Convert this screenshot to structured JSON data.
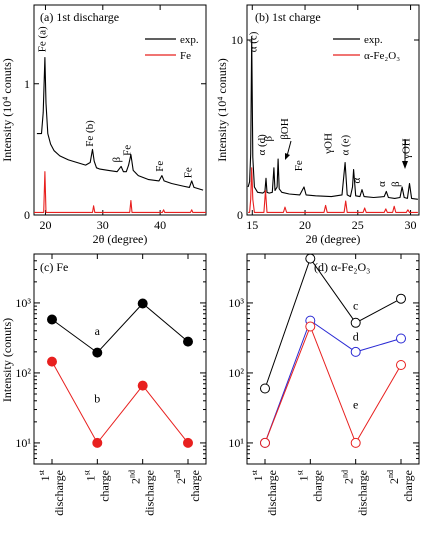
{
  "chart_data": [
    {
      "panel": "a",
      "type": "line",
      "title": "(a) 1st discharge",
      "xlabel": "2θ (degree)",
      "ylabel": "Intensity (10⁴ conuts)",
      "xlim": [
        18,
        48
      ],
      "ylim": [
        0,
        1.6
      ],
      "xticks": [
        20,
        30,
        40
      ],
      "yticks": [
        0,
        1
      ],
      "legend": {
        "position": "top-right",
        "entries": [
          {
            "name": "exp.",
            "color": "#000000"
          },
          {
            "name": "Fe",
            "color": "#e8201f"
          }
        ]
      },
      "annotations": [
        {
          "text": "Fe (a)",
          "x": 20,
          "y": 1.24
        },
        {
          "text": "Fe (b)",
          "x": 28.3,
          "y": 0.52
        },
        {
          "text": "β",
          "x": 33,
          "y": 0.4
        },
        {
          "text": "Fe",
          "x": 34.8,
          "y": 0.45
        },
        {
          "text": "Fe",
          "x": 40.5,
          "y": 0.33
        },
        {
          "text": "Fe",
          "x": 45.5,
          "y": 0.28
        }
      ],
      "series": [
        {
          "name": "exp.",
          "color": "#000000",
          "x": [
            18.5,
            19.3,
            19.6,
            19.9,
            20.1,
            20.4,
            20.9,
            21.5,
            22.5,
            24,
            25.5,
            27,
            27.8,
            28.2,
            28.5,
            28.9,
            29.5,
            31,
            32.5,
            33.2,
            33.6,
            34.1,
            34.5,
            34.9,
            35.3,
            36.2,
            38,
            39.8,
            40.3,
            40.7,
            42,
            44,
            45.1,
            45.5,
            45.9,
            47.5
          ],
          "y": [
            0.62,
            0.62,
            0.78,
            1.2,
            0.85,
            0.62,
            0.54,
            0.49,
            0.45,
            0.42,
            0.4,
            0.38,
            0.4,
            0.5,
            0.41,
            0.36,
            0.35,
            0.34,
            0.33,
            0.37,
            0.33,
            0.33,
            0.38,
            0.46,
            0.34,
            0.3,
            0.27,
            0.26,
            0.3,
            0.26,
            0.24,
            0.22,
            0.21,
            0.26,
            0.21,
            0.19
          ]
        },
        {
          "name": "Fe",
          "color": "#e8201f",
          "x": [
            18,
            19.7,
            19.9,
            20.1,
            20.3,
            28.2,
            28.4,
            28.6,
            34.7,
            34.9,
            35.1,
            40.4,
            40.6,
            40.8,
            45.3,
            45.5,
            45.7,
            48
          ],
          "y": [
            0.02,
            0.02,
            0.33,
            0.02,
            0.02,
            0.02,
            0.07,
            0.02,
            0.02,
            0.11,
            0.02,
            0.02,
            0.04,
            0.02,
            0.02,
            0.04,
            0.02,
            0.02
          ]
        }
      ]
    },
    {
      "panel": "b",
      "type": "line",
      "title": "(b) 1st charge",
      "xlabel": "2θ (degree)",
      "ylabel": "Intensity (10⁴ conuts)",
      "xlim": [
        14.5,
        30.8
      ],
      "ylim": [
        0,
        12
      ],
      "xticks": [
        15,
        20,
        25,
        30
      ],
      "yticks": [
        0,
        10
      ],
      "legend": {
        "position": "top-right",
        "entries": [
          {
            "name": "exp.",
            "color": "#000000"
          },
          {
            "name": "α-Fe₂O₃",
            "color": "#e8201f"
          }
        ]
      },
      "annotations": [
        {
          "text": "α (c)",
          "x": 15.4,
          "y": 9.3
        },
        {
          "text": "α (d)",
          "x": 16.2,
          "y": 3.4
        },
        {
          "text": "β",
          "x": 16.8,
          "y": 4.2
        },
        {
          "text": "βOH",
          "x": 18.4,
          "y": 4.3
        },
        {
          "text": "Fe",
          "x": 19.7,
          "y": 2.5
        },
        {
          "text": "γOH",
          "x": 22.5,
          "y": 3.5
        },
        {
          "text": "α (e)",
          "x": 24.1,
          "y": 3.4
        },
        {
          "text": "α",
          "x": 25.2,
          "y": 1.8
        },
        {
          "text": "α",
          "x": 27.6,
          "y": 1.6
        },
        {
          "text": "β",
          "x": 28.9,
          "y": 1.6
        },
        {
          "text": "γOH",
          "x": 29.9,
          "y": 3.2
        }
      ],
      "series": [
        {
          "name": "exp.",
          "color": "#000000",
          "x": [
            14.6,
            14.75,
            14.85,
            14.95,
            15.05,
            15.2,
            15.5,
            16,
            16.2,
            16.3,
            16.4,
            16.6,
            16.9,
            17.05,
            17.15,
            17.35,
            17.45,
            17.55,
            17.8,
            18.5,
            19.5,
            19.9,
            20.1,
            21,
            22.5,
            23.5,
            23.8,
            24,
            24.3,
            24.5,
            24.6,
            24.8,
            25.2,
            25.4,
            25.6,
            26.5,
            27.5,
            27.7,
            27.9,
            28.5,
            29,
            29.2,
            29.4,
            29.7,
            29.9,
            30.1,
            30.7
          ],
          "y": [
            1.6,
            1.9,
            3.5,
            10.2,
            3.3,
            1.6,
            1.3,
            1.25,
            1.35,
            2.1,
            1.3,
            1.25,
            1.3,
            2.7,
            1.4,
            1.6,
            3.2,
            1.5,
            1.3,
            1.2,
            1.15,
            1.6,
            1.15,
            1.1,
            1.05,
            1.15,
            3.0,
            1.15,
            1.05,
            1.6,
            2.6,
            1.1,
            1.05,
            1.45,
            1.05,
            1.0,
            1.05,
            1.35,
            1.0,
            0.95,
            1.0,
            1.6,
            1.0,
            0.95,
            1.8,
            0.95,
            0.9
          ]
        },
        {
          "name": "α-Fe₂O₃",
          "color": "#e8201f",
          "x": [
            14.6,
            14.75,
            14.85,
            14.95,
            15.05,
            15.2,
            16.1,
            16.25,
            16.4,
            17.95,
            18.1,
            18.25,
            21.8,
            21.95,
            22.1,
            23.7,
            23.85,
            24,
            25.5,
            25.65,
            25.8,
            27.5,
            27.65,
            27.8,
            28.3,
            28.45,
            28.6,
            29.6,
            29.75,
            29.9,
            30.7
          ],
          "y": [
            0.15,
            0.15,
            0.9,
            2.7,
            0.9,
            0.15,
            0.15,
            1.4,
            0.15,
            0.15,
            0.45,
            0.15,
            0.15,
            0.55,
            0.15,
            0.15,
            0.8,
            0.15,
            0.15,
            0.4,
            0.15,
            0.15,
            0.35,
            0.15,
            0.15,
            0.5,
            0.15,
            0.15,
            0.3,
            0.15,
            0.15
          ]
        }
      ]
    },
    {
      "panel": "c",
      "type": "line",
      "title": "(c) Fe",
      "ylabel": "Intensity (conuts)",
      "yscale": "log",
      "ylim": [
        5,
        5000
      ],
      "ytick_values": [
        10,
        100,
        1000
      ],
      "ytick_labels": [
        "10¹",
        "10²",
        "10³"
      ],
      "categories": [
        "1st discharge",
        "1st charge",
        "2nd discharge",
        "2nd charge"
      ],
      "annotations": [
        {
          "text": "a",
          "category": 1,
          "y": 350
        },
        {
          "text": "b",
          "category": 1,
          "y": 38
        }
      ],
      "series": [
        {
          "label": "a",
          "color": "#000000",
          "marker": "filled",
          "values": [
            580,
            195,
            980,
            280
          ]
        },
        {
          "label": "b",
          "color": "#e8201f",
          "marker": "filled",
          "values": [
            145,
            10,
            66,
            10
          ]
        }
      ]
    },
    {
      "panel": "d",
      "type": "line",
      "title": "(d) α-Fe₂O₃",
      "yscale": "log",
      "ylim": [
        5,
        5000
      ],
      "ytick_values": [
        10,
        100,
        1000
      ],
      "ytick_labels": [
        "10¹",
        "10²",
        "10³"
      ],
      "categories": [
        "1st discharge",
        "1st charge",
        "2nd discharge",
        "2nd charge"
      ],
      "annotations": [
        {
          "text": "c",
          "category": 2,
          "y": 800
        },
        {
          "text": "d",
          "category": 2,
          "y": 290
        },
        {
          "text": "e",
          "category": 2,
          "y": 31
        }
      ],
      "series": [
        {
          "label": "c",
          "color": "#000000",
          "marker": "open",
          "values": [
            60,
            4300,
            520,
            1150
          ]
        },
        {
          "label": "d",
          "color": "#2a2ad4",
          "marker": "open",
          "values": [
            10,
            560,
            200,
            310
          ]
        },
        {
          "label": "e",
          "color": "#e8201f",
          "marker": "open",
          "values": [
            10,
            460,
            10,
            130
          ]
        }
      ]
    }
  ]
}
